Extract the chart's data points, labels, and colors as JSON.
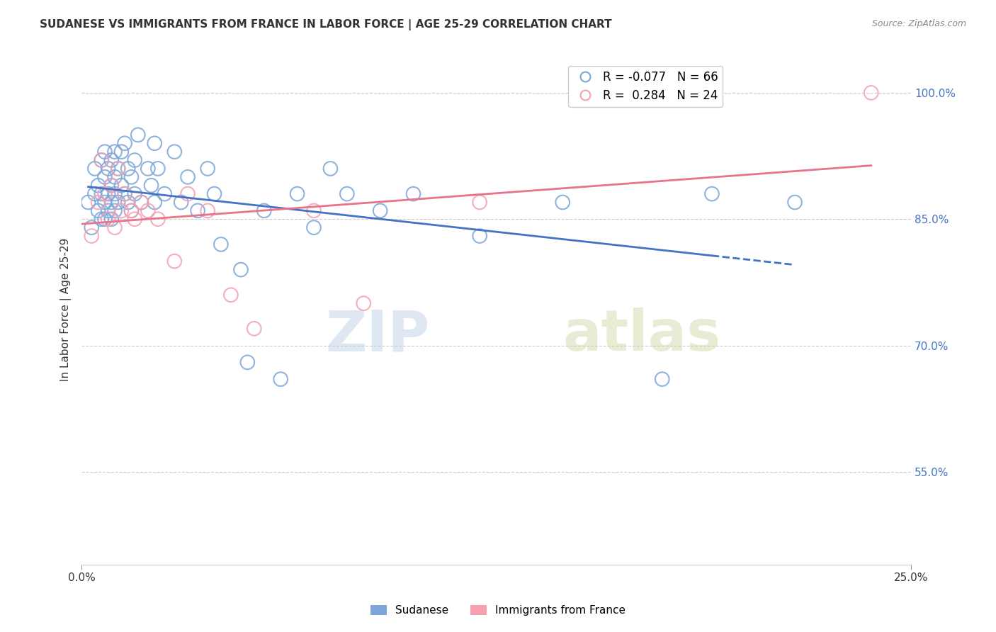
{
  "title": "SUDANESE VS IMMIGRANTS FROM FRANCE IN LABOR FORCE | AGE 25-29 CORRELATION CHART",
  "source": "Source: ZipAtlas.com",
  "ylabel": "In Labor Force | Age 25-29",
  "ytick_labels": [
    "55.0%",
    "70.0%",
    "85.0%",
    "100.0%"
  ],
  "ytick_values": [
    0.55,
    0.7,
    0.85,
    1.0
  ],
  "xlim": [
    0.0,
    0.25
  ],
  "ylim": [
    0.44,
    1.045
  ],
  "sudanese_color": "#7ca6d8",
  "france_color": "#f4a0b0",
  "regression_blue_color": "#4472c4",
  "regression_pink_color": "#e8738a",
  "sudanese_x": [
    0.002,
    0.003,
    0.004,
    0.004,
    0.005,
    0.005,
    0.006,
    0.006,
    0.006,
    0.007,
    0.007,
    0.007,
    0.007,
    0.008,
    0.008,
    0.008,
    0.009,
    0.009,
    0.009,
    0.009,
    0.01,
    0.01,
    0.01,
    0.01,
    0.011,
    0.011,
    0.012,
    0.012,
    0.013,
    0.013,
    0.014,
    0.014,
    0.015,
    0.015,
    0.016,
    0.016,
    0.017,
    0.018,
    0.02,
    0.021,
    0.022,
    0.022,
    0.023,
    0.025,
    0.028,
    0.03,
    0.032,
    0.035,
    0.038,
    0.04,
    0.042,
    0.048,
    0.05,
    0.055,
    0.06,
    0.065,
    0.07,
    0.075,
    0.08,
    0.09,
    0.1,
    0.12,
    0.145,
    0.175,
    0.19,
    0.215
  ],
  "sudanese_y": [
    0.87,
    0.84,
    0.88,
    0.91,
    0.86,
    0.89,
    0.92,
    0.88,
    0.85,
    0.9,
    0.93,
    0.87,
    0.85,
    0.91,
    0.88,
    0.86,
    0.92,
    0.89,
    0.87,
    0.85,
    0.93,
    0.9,
    0.88,
    0.86,
    0.91,
    0.87,
    0.93,
    0.89,
    0.94,
    0.88,
    0.91,
    0.87,
    0.9,
    0.86,
    0.92,
    0.88,
    0.95,
    0.87,
    0.91,
    0.89,
    0.94,
    0.87,
    0.91,
    0.88,
    0.93,
    0.87,
    0.9,
    0.86,
    0.91,
    0.88,
    0.82,
    0.79,
    0.68,
    0.86,
    0.66,
    0.88,
    0.84,
    0.91,
    0.88,
    0.86,
    0.88,
    0.83,
    0.87,
    0.66,
    0.88,
    0.87
  ],
  "france_x": [
    0.003,
    0.005,
    0.006,
    0.007,
    0.008,
    0.009,
    0.01,
    0.011,
    0.012,
    0.013,
    0.015,
    0.016,
    0.018,
    0.02,
    0.023,
    0.028,
    0.032,
    0.038,
    0.045,
    0.052,
    0.07,
    0.085,
    0.12,
    0.238
  ],
  "france_y": [
    0.83,
    0.87,
    0.92,
    0.88,
    0.85,
    0.89,
    0.84,
    0.91,
    0.86,
    0.88,
    0.86,
    0.85,
    0.87,
    0.86,
    0.85,
    0.8,
    0.88,
    0.86,
    0.76,
    0.72,
    0.86,
    0.75,
    0.87,
    1.0
  ],
  "watermark_zip": "ZIP",
  "watermark_atlas": "atlas",
  "background_color": "#ffffff",
  "grid_color": "#cccccc",
  "legend_label_blue": "R = -0.077   N = 66",
  "legend_label_pink": "R =  0.284   N = 24",
  "bottom_legend_blue": "Sudanese",
  "bottom_legend_pink": "Immigrants from France"
}
